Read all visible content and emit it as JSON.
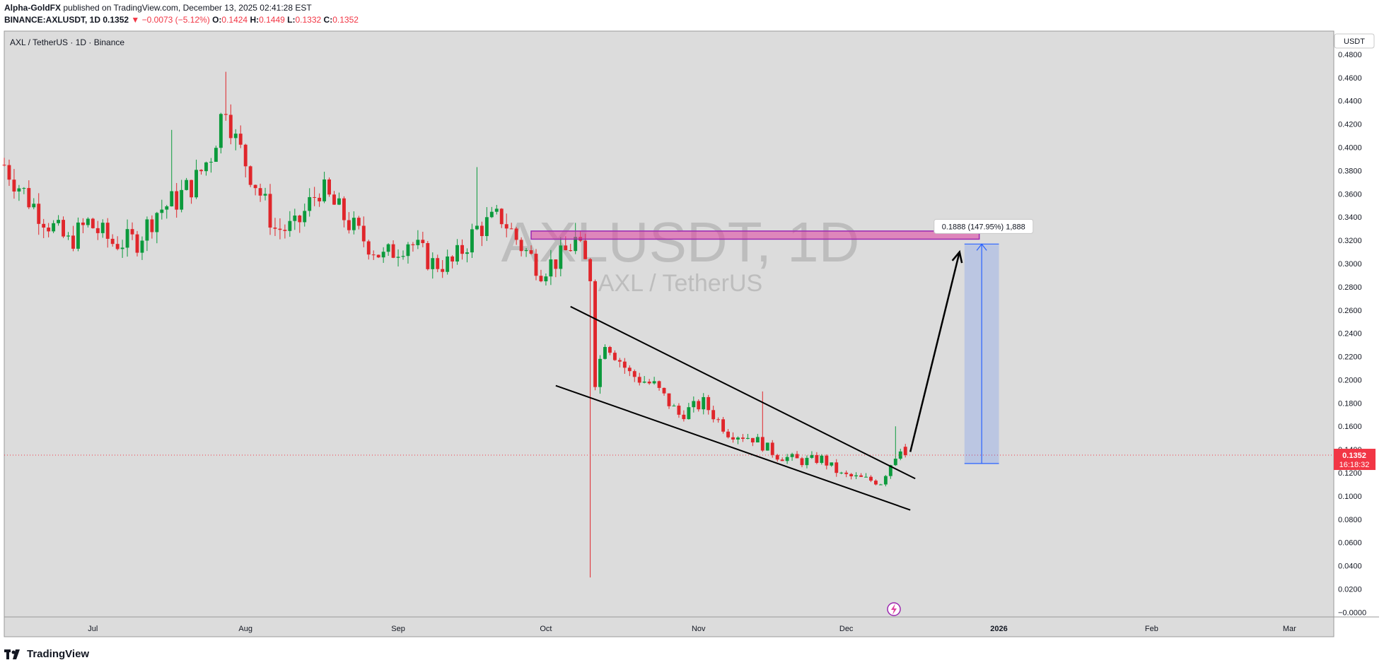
{
  "header": {
    "publisher": "Alpha-GoldFX",
    "published_text": "published on TradingView.com, December 13, 2025 02:41:28 EST",
    "symbol_line": "BINANCE:AXLUSDT, 1D",
    "last": "0.1352",
    "change": "−0.0073 (−5.12%)",
    "o_label": "O:",
    "o": "0.1424",
    "h_label": "H:",
    "h": "0.1449",
    "l_label": "L:",
    "l": "0.1332",
    "c_label": "C:",
    "c": "0.1352"
  },
  "legend_title": "AXL / TetherUS · 1D · Binance",
  "currency_button": "USDT",
  "watermark": {
    "main": "AXLUSDT, 1D",
    "sub": "AXL / TetherUS"
  },
  "price_label": {
    "value": "0.1352",
    "countdown": "16:18:32"
  },
  "measure_label": "0.1888 (147.95%) 1,888",
  "footer": {
    "brand": "TradingView"
  },
  "colors": {
    "up": "#26a69a",
    "up_body": "#0b9a3c",
    "down": "#e0262b",
    "background": "#dcdcdc",
    "zone": "#e040a0",
    "measure": "#2962ff"
  },
  "chart_data": {
    "type": "candlestick",
    "y_ticks": [
      "0.4800",
      "0.4600",
      "0.4400",
      "0.4200",
      "0.4000",
      "0.3800",
      "0.3600",
      "0.3400",
      "0.3200",
      "0.3000",
      "0.2800",
      "0.2600",
      "0.2400",
      "0.2200",
      "0.2000",
      "0.1800",
      "0.1600",
      "0.1400",
      "0.1200",
      "0.1000",
      "0.0800",
      "0.0600",
      "0.0400",
      "0.0200",
      "−0.0000"
    ],
    "y_tick_values": [
      0.48,
      0.46,
      0.44,
      0.42,
      0.4,
      0.38,
      0.36,
      0.34,
      0.32,
      0.3,
      0.28,
      0.26,
      0.24,
      0.22,
      0.2,
      0.18,
      0.16,
      0.14,
      0.12,
      0.1,
      0.08,
      0.06,
      0.04,
      0.02,
      0.0
    ],
    "ylim": [
      -0.004,
      0.5
    ],
    "x_ticks": [
      {
        "label": "Jul",
        "date": "2025-07-01"
      },
      {
        "label": "Aug",
        "date": "2025-08-01"
      },
      {
        "label": "Sep",
        "date": "2025-09-01"
      },
      {
        "label": "Oct",
        "date": "2025-10-01"
      },
      {
        "label": "Nov",
        "date": "2025-11-01"
      },
      {
        "label": "Dec",
        "date": "2025-12-01"
      },
      {
        "label": "2026",
        "date": "2026-01-01"
      },
      {
        "label": "Feb",
        "date": "2026-02-01"
      },
      {
        "label": "Mar",
        "date": "2026-03-01"
      }
    ],
    "xlim": [
      "2025-06-13",
      "2026-03-10"
    ],
    "anchors": [
      {
        "date": "2025-06-13",
        "price": 0.385
      },
      {
        "date": "2025-06-18",
        "price": 0.355
      },
      {
        "date": "2025-06-22",
        "price": 0.335
      },
      {
        "date": "2025-06-26",
        "price": 0.318
      },
      {
        "date": "2025-06-30",
        "price": 0.335
      },
      {
        "date": "2025-07-05",
        "price": 0.318
      },
      {
        "date": "2025-07-10",
        "price": 0.32
      },
      {
        "date": "2025-07-14",
        "price": 0.345
      },
      {
        "date": "2025-07-18",
        "price": 0.355
      },
      {
        "date": "2025-07-22",
        "price": 0.372
      },
      {
        "date": "2025-07-25",
        "price": 0.395
      },
      {
        "date": "2025-07-28",
        "price": 0.44
      },
      {
        "date": "2025-07-30",
        "price": 0.405
      },
      {
        "date": "2025-08-03",
        "price": 0.37
      },
      {
        "date": "2025-08-07",
        "price": 0.33
      },
      {
        "date": "2025-08-11",
        "price": 0.33
      },
      {
        "date": "2025-08-16",
        "price": 0.365
      },
      {
        "date": "2025-08-20",
        "price": 0.345
      },
      {
        "date": "2025-08-24",
        "price": 0.325
      },
      {
        "date": "2025-08-29",
        "price": 0.305
      },
      {
        "date": "2025-09-03",
        "price": 0.32
      },
      {
        "date": "2025-09-08",
        "price": 0.3
      },
      {
        "date": "2025-09-12",
        "price": 0.3
      },
      {
        "date": "2025-09-17",
        "price": 0.33
      },
      {
        "date": "2025-09-22",
        "price": 0.34
      },
      {
        "date": "2025-09-26",
        "price": 0.315
      },
      {
        "date": "2025-09-30",
        "price": 0.295
      },
      {
        "date": "2025-10-04",
        "price": 0.305
      },
      {
        "date": "2025-10-07",
        "price": 0.32
      },
      {
        "date": "2025-10-10",
        "price": 0.29
      },
      {
        "date": "2025-10-11",
        "price": 0.2
      },
      {
        "date": "2025-10-13",
        "price": 0.235
      },
      {
        "date": "2025-10-18",
        "price": 0.205
      },
      {
        "date": "2025-10-23",
        "price": 0.195
      },
      {
        "date": "2025-10-28",
        "price": 0.17
      },
      {
        "date": "2025-11-02",
        "price": 0.18
      },
      {
        "date": "2025-11-07",
        "price": 0.155
      },
      {
        "date": "2025-11-12",
        "price": 0.15
      },
      {
        "date": "2025-11-17",
        "price": 0.135
      },
      {
        "date": "2025-11-22",
        "price": 0.13
      },
      {
        "date": "2025-11-26",
        "price": 0.132
      },
      {
        "date": "2025-11-30",
        "price": 0.118
      },
      {
        "date": "2025-12-04",
        "price": 0.115
      },
      {
        "date": "2025-12-08",
        "price": 0.112
      },
      {
        "date": "2025-12-10",
        "price": 0.128
      },
      {
        "date": "2025-12-12",
        "price": 0.1424
      },
      {
        "date": "2025-12-13",
        "price": 0.1352
      }
    ],
    "spikes": [
      {
        "date": "2025-07-17",
        "high": 0.415
      },
      {
        "date": "2025-07-28",
        "high": 0.465
      },
      {
        "date": "2025-09-17",
        "high": 0.383
      },
      {
        "date": "2025-10-07",
        "high": 0.335
      },
      {
        "date": "2025-10-10",
        "low": 0.03
      },
      {
        "date": "2025-11-14",
        "high": 0.19
      },
      {
        "date": "2025-12-11",
        "high": 0.16
      }
    ],
    "last_candle": {
      "date": "2025-12-13",
      "open": 0.1424,
      "high": 0.1449,
      "low": 0.1332,
      "close": 0.1352
    },
    "target_zone": {
      "from_date": "2025-09-28",
      "to_date": "2025-12-28",
      "bottom": 0.321,
      "top": 0.328
    },
    "channel_upper": [
      {
        "date": "2025-10-06",
        "price": 0.263
      },
      {
        "date": "2025-12-15",
        "price": 0.115
      }
    ],
    "channel_lower": [
      {
        "date": "2025-10-03",
        "price": 0.195
      },
      {
        "date": "2025-12-14",
        "price": 0.088
      }
    ],
    "arrow": [
      {
        "date": "2025-12-14",
        "price": 0.138
      },
      {
        "date": "2025-12-24",
        "price": 0.31
      }
    ],
    "measure": {
      "from_date": "2025-12-25",
      "to_date": "2026-01-01",
      "bottom": 0.128,
      "top": 0.3168
    }
  }
}
